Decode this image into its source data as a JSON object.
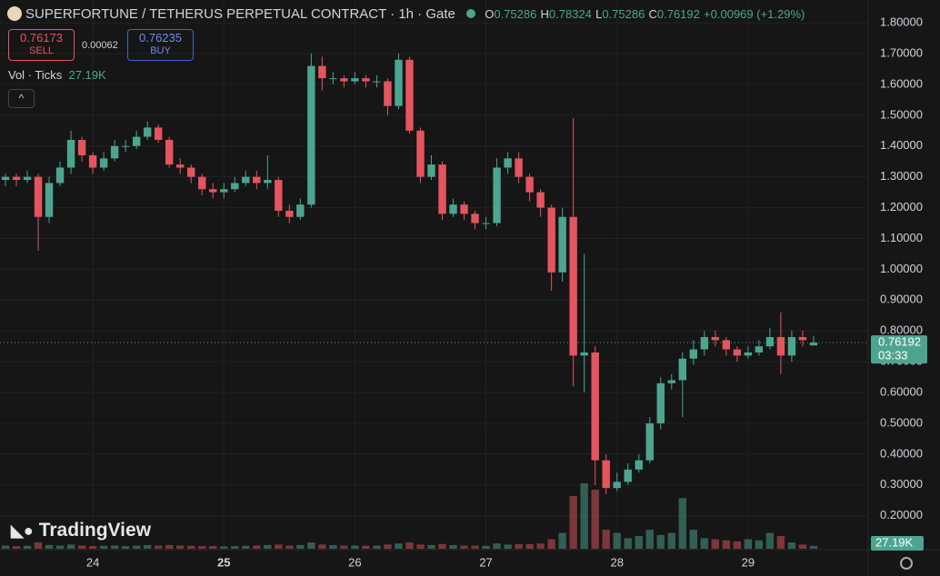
{
  "chart_data": {
    "type": "candlestick",
    "title": "SUPERFORTUNE / TETHERUS PERPETUAL CONTRACT · 1h · Gate",
    "ohlc_letters": [
      "O",
      "H",
      "L",
      "C"
    ],
    "change": "+0.00969 (+1.29%)",
    "sell": {
      "price": "0.76173",
      "label": "SELL"
    },
    "spread": "0.00062",
    "buy": {
      "price": "0.76235",
      "label": "BUY"
    },
    "volume_legend": {
      "label": "Vol · Ticks",
      "value": "27.19K"
    },
    "countdown": "03:33",
    "watermark": "TradingView",
    "up_color": "#4da58f",
    "down_color": "#e4555f",
    "grid": true,
    "xlim": [
      -17,
      142
    ],
    "xticks": [
      {
        "value": 0,
        "label": "24"
      },
      {
        "value": 24,
        "label": "25"
      },
      {
        "value": 48,
        "label": "26"
      },
      {
        "value": 72,
        "label": "27"
      },
      {
        "value": 96,
        "label": "28"
      },
      {
        "value": 120,
        "label": "29"
      }
    ],
    "ylim": [
      0.09,
      1.874
    ],
    "yticks": [
      {
        "value": 0.2,
        "label": "0.20000"
      },
      {
        "value": 0.3,
        "label": "0.30000"
      },
      {
        "value": 0.4,
        "label": "0.40000"
      },
      {
        "value": 0.5,
        "label": "0.50000"
      },
      {
        "value": 0.6,
        "label": "0.60000"
      },
      {
        "value": 0.7,
        "label": "0.70000"
      },
      {
        "value": 0.8,
        "label": "0.80000"
      },
      {
        "value": 0.9,
        "label": "0.90000"
      },
      {
        "value": 1.0,
        "label": "1.00000"
      },
      {
        "value": 1.1,
        "label": "1.10000"
      },
      {
        "value": 1.2,
        "label": "1.20000"
      },
      {
        "value": 1.3,
        "label": "1.30000"
      },
      {
        "value": 1.4,
        "label": "1.40000"
      },
      {
        "value": 1.5,
        "label": "1.50000"
      },
      {
        "value": 1.6,
        "label": "1.60000"
      },
      {
        "value": 1.7,
        "label": "1.70000"
      },
      {
        "value": 1.8,
        "label": "1.80000"
      }
    ],
    "x": [
      -16,
      -14,
      -12,
      -10,
      -8,
      -6,
      -4,
      -2,
      0,
      2,
      4,
      6,
      8,
      10,
      12,
      14,
      16,
      18,
      20,
      22,
      24,
      26,
      28,
      30,
      32,
      34,
      36,
      38,
      40,
      42,
      44,
      46,
      48,
      50,
      52,
      54,
      56,
      58,
      60,
      62,
      64,
      66,
      68,
      70,
      72,
      74,
      76,
      78,
      80,
      82,
      84,
      86,
      88,
      90,
      92,
      94,
      96,
      98,
      100,
      102,
      104,
      106,
      108,
      110,
      112,
      114,
      116,
      118,
      120,
      122,
      124,
      126,
      128,
      130,
      132
    ],
    "open": [
      1.29,
      1.3,
      1.29,
      1.3,
      1.17,
      1.28,
      1.33,
      1.42,
      1.37,
      1.33,
      1.36,
      1.4,
      1.4,
      1.43,
      1.46,
      1.42,
      1.34,
      1.33,
      1.3,
      1.26,
      1.25,
      1.26,
      1.28,
      1.3,
      1.28,
      1.29,
      1.19,
      1.17,
      1.21,
      1.66,
      1.62,
      1.62,
      1.61,
      1.62,
      1.61,
      1.61,
      1.53,
      1.68,
      1.45,
      1.3,
      1.34,
      1.18,
      1.21,
      1.18,
      1.15,
      1.15,
      1.33,
      1.36,
      1.3,
      1.25,
      1.2,
      0.99,
      1.17,
      0.72,
      0.73,
      0.38,
      0.29,
      0.31,
      0.35,
      0.38,
      0.5,
      0.63,
      0.64,
      0.71,
      0.74,
      0.78,
      0.77,
      0.74,
      0.72,
      0.73,
      0.75,
      0.78,
      0.72,
      0.78,
      0.75286
    ],
    "high": [
      1.31,
      1.31,
      1.32,
      1.31,
      1.3,
      1.35,
      1.45,
      1.43,
      1.38,
      1.38,
      1.42,
      1.42,
      1.45,
      1.48,
      1.47,
      1.43,
      1.36,
      1.34,
      1.31,
      1.28,
      1.28,
      1.3,
      1.32,
      1.32,
      1.37,
      1.3,
      1.21,
      1.23,
      1.7,
      1.69,
      1.64,
      1.63,
      1.64,
      1.63,
      1.63,
      1.62,
      1.7,
      1.69,
      1.46,
      1.37,
      1.35,
      1.23,
      1.22,
      1.19,
      1.17,
      1.36,
      1.38,
      1.38,
      1.31,
      1.26,
      1.21,
      1.2,
      1.49,
      1.05,
      0.75,
      0.4,
      0.34,
      0.37,
      0.4,
      0.52,
      0.65,
      0.66,
      0.73,
      0.77,
      0.8,
      0.8,
      0.78,
      0.75,
      0.75,
      0.77,
      0.81,
      0.86,
      0.8,
      0.8,
      0.78324
    ],
    "low": [
      1.27,
      1.27,
      1.28,
      1.06,
      1.15,
      1.27,
      1.31,
      1.35,
      1.31,
      1.32,
      1.35,
      1.38,
      1.39,
      1.42,
      1.41,
      1.33,
      1.31,
      1.28,
      1.24,
      1.23,
      1.23,
      1.25,
      1.27,
      1.26,
      1.26,
      1.17,
      1.15,
      1.16,
      1.2,
      1.58,
      1.6,
      1.59,
      1.6,
      1.59,
      1.59,
      1.5,
      1.52,
      1.44,
      1.28,
      1.29,
      1.16,
      1.17,
      1.16,
      1.13,
      1.13,
      1.14,
      1.31,
      1.28,
      1.22,
      1.17,
      0.93,
      0.96,
      0.62,
      0.6,
      0.3,
      0.27,
      0.28,
      0.3,
      0.34,
      0.37,
      0.48,
      0.61,
      0.52,
      0.69,
      0.72,
      0.75,
      0.72,
      0.7,
      0.71,
      0.72,
      0.74,
      0.66,
      0.7,
      0.75,
      0.75286
    ],
    "close": [
      1.3,
      1.29,
      1.3,
      1.17,
      1.28,
      1.33,
      1.42,
      1.37,
      1.33,
      1.36,
      1.4,
      1.4,
      1.43,
      1.46,
      1.42,
      1.34,
      1.33,
      1.3,
      1.26,
      1.25,
      1.26,
      1.28,
      1.3,
      1.28,
      1.29,
      1.19,
      1.17,
      1.21,
      1.66,
      1.62,
      1.62,
      1.61,
      1.62,
      1.61,
      1.61,
      1.53,
      1.68,
      1.45,
      1.3,
      1.34,
      1.18,
      1.21,
      1.18,
      1.15,
      1.15,
      1.33,
      1.36,
      1.3,
      1.25,
      1.2,
      0.99,
      1.17,
      0.72,
      0.73,
      0.38,
      0.29,
      0.31,
      0.35,
      0.38,
      0.5,
      0.63,
      0.64,
      0.71,
      0.74,
      0.78,
      0.77,
      0.74,
      0.72,
      0.73,
      0.75,
      0.78,
      0.72,
      0.78,
      0.77,
      0.76192
    ],
    "volume": [
      30000,
      25000,
      28000,
      60000,
      35000,
      30000,
      40000,
      30000,
      25000,
      28000,
      30000,
      25000,
      30000,
      35000,
      30000,
      35000,
      30000,
      28000,
      25000,
      25000,
      22000,
      25000,
      28000,
      30000,
      35000,
      40000,
      30000,
      35000,
      60000,
      40000,
      35000,
      30000,
      30000,
      28000,
      30000,
      40000,
      50000,
      60000,
      40000,
      35000,
      45000,
      35000,
      30000,
      30000,
      28000,
      50000,
      40000,
      45000,
      45000,
      50000,
      90000,
      150000,
      500000,
      620000,
      560000,
      180000,
      150000,
      100000,
      120000,
      180000,
      130000,
      150000,
      480000,
      180000,
      100000,
      90000,
      80000,
      70000,
      90000,
      80000,
      150000,
      120000,
      60000,
      40000,
      27190
    ]
  }
}
